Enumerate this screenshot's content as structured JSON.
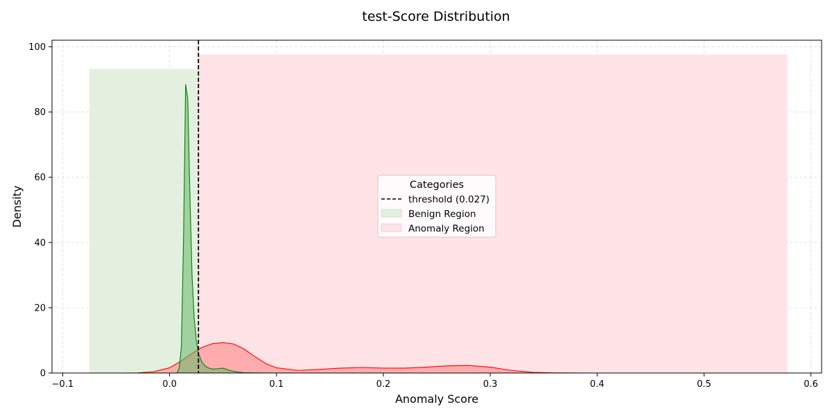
{
  "chart_data": {
    "type": "area",
    "title": "test-Score Distribution",
    "xlabel": "Anomaly Score",
    "ylabel": "Density",
    "xlim": [
      -0.11,
      0.61
    ],
    "ylim": [
      0,
      102
    ],
    "xticks": [
      -0.1,
      0.0,
      0.1,
      0.2,
      0.3,
      0.4,
      0.5,
      0.6
    ],
    "xtick_labels": [
      "−0.1",
      "0.0",
      "0.1",
      "0.2",
      "0.3",
      "0.4",
      "0.5",
      "0.6"
    ],
    "yticks": [
      0,
      20,
      40,
      60,
      80,
      100
    ],
    "ytick_labels": [
      "0",
      "20",
      "40",
      "60",
      "80",
      "100"
    ],
    "grid": true,
    "legend": {
      "title": "Categories",
      "placement": "center",
      "entries": [
        "threshold (0.027)",
        "Benign Region",
        "Anomaly Region"
      ]
    },
    "threshold": {
      "x": 0.027,
      "label": "threshold (0.027)",
      "color": "#000000"
    },
    "regions": [
      {
        "name": "Benign Region",
        "x_start": -0.075,
        "x_end": 0.027,
        "height": 93.2,
        "color": "#e3f0e0"
      },
      {
        "name": "Anomaly Region",
        "x_start": 0.027,
        "x_end": 0.578,
        "height": 97.6,
        "color": "#ffe3e6"
      }
    ],
    "series": [
      {
        "color": "#ff0000",
        "fill": "#ff7f7f",
        "x": [
          -0.045,
          -0.03,
          -0.015,
          0.0,
          0.01,
          0.02,
          0.03,
          0.04,
          0.05,
          0.06,
          0.07,
          0.08,
          0.09,
          0.1,
          0.12,
          0.14,
          0.16,
          0.18,
          0.2,
          0.22,
          0.24,
          0.26,
          0.28,
          0.3,
          0.32,
          0.34,
          0.36,
          0.4,
          0.45,
          0.5,
          0.545
        ],
        "y": [
          0.0,
          0.05,
          0.4,
          1.6,
          3.5,
          5.8,
          7.8,
          9.0,
          9.3,
          8.9,
          7.3,
          5.0,
          2.9,
          1.6,
          0.8,
          1.1,
          1.5,
          1.7,
          1.5,
          1.5,
          1.8,
          2.2,
          2.3,
          1.8,
          0.8,
          0.2,
          0.05,
          0.0,
          0.0,
          0.0,
          0.0
        ]
      },
      {
        "color": "#008000",
        "fill": "#6ab86a",
        "x": [
          0.007,
          0.009,
          0.011,
          0.013,
          0.015,
          0.017,
          0.019,
          0.021,
          0.023,
          0.025,
          0.027,
          0.03,
          0.033,
          0.036,
          0.04,
          0.045,
          0.05,
          0.055,
          0.06,
          0.065,
          0.07,
          0.08,
          0.09,
          0.12,
          0.2,
          0.3,
          0.4,
          0.545
        ],
        "y": [
          0.0,
          1.5,
          8.0,
          40.0,
          88.5,
          84.0,
          55.0,
          30.0,
          17.0,
          10.0,
          6.0,
          3.5,
          2.2,
          1.6,
          1.2,
          1.3,
          1.5,
          0.9,
          0.5,
          0.25,
          0.1,
          0.05,
          0.02,
          0.0,
          0.0,
          0.0,
          0.0,
          0.0
        ]
      }
    ]
  }
}
